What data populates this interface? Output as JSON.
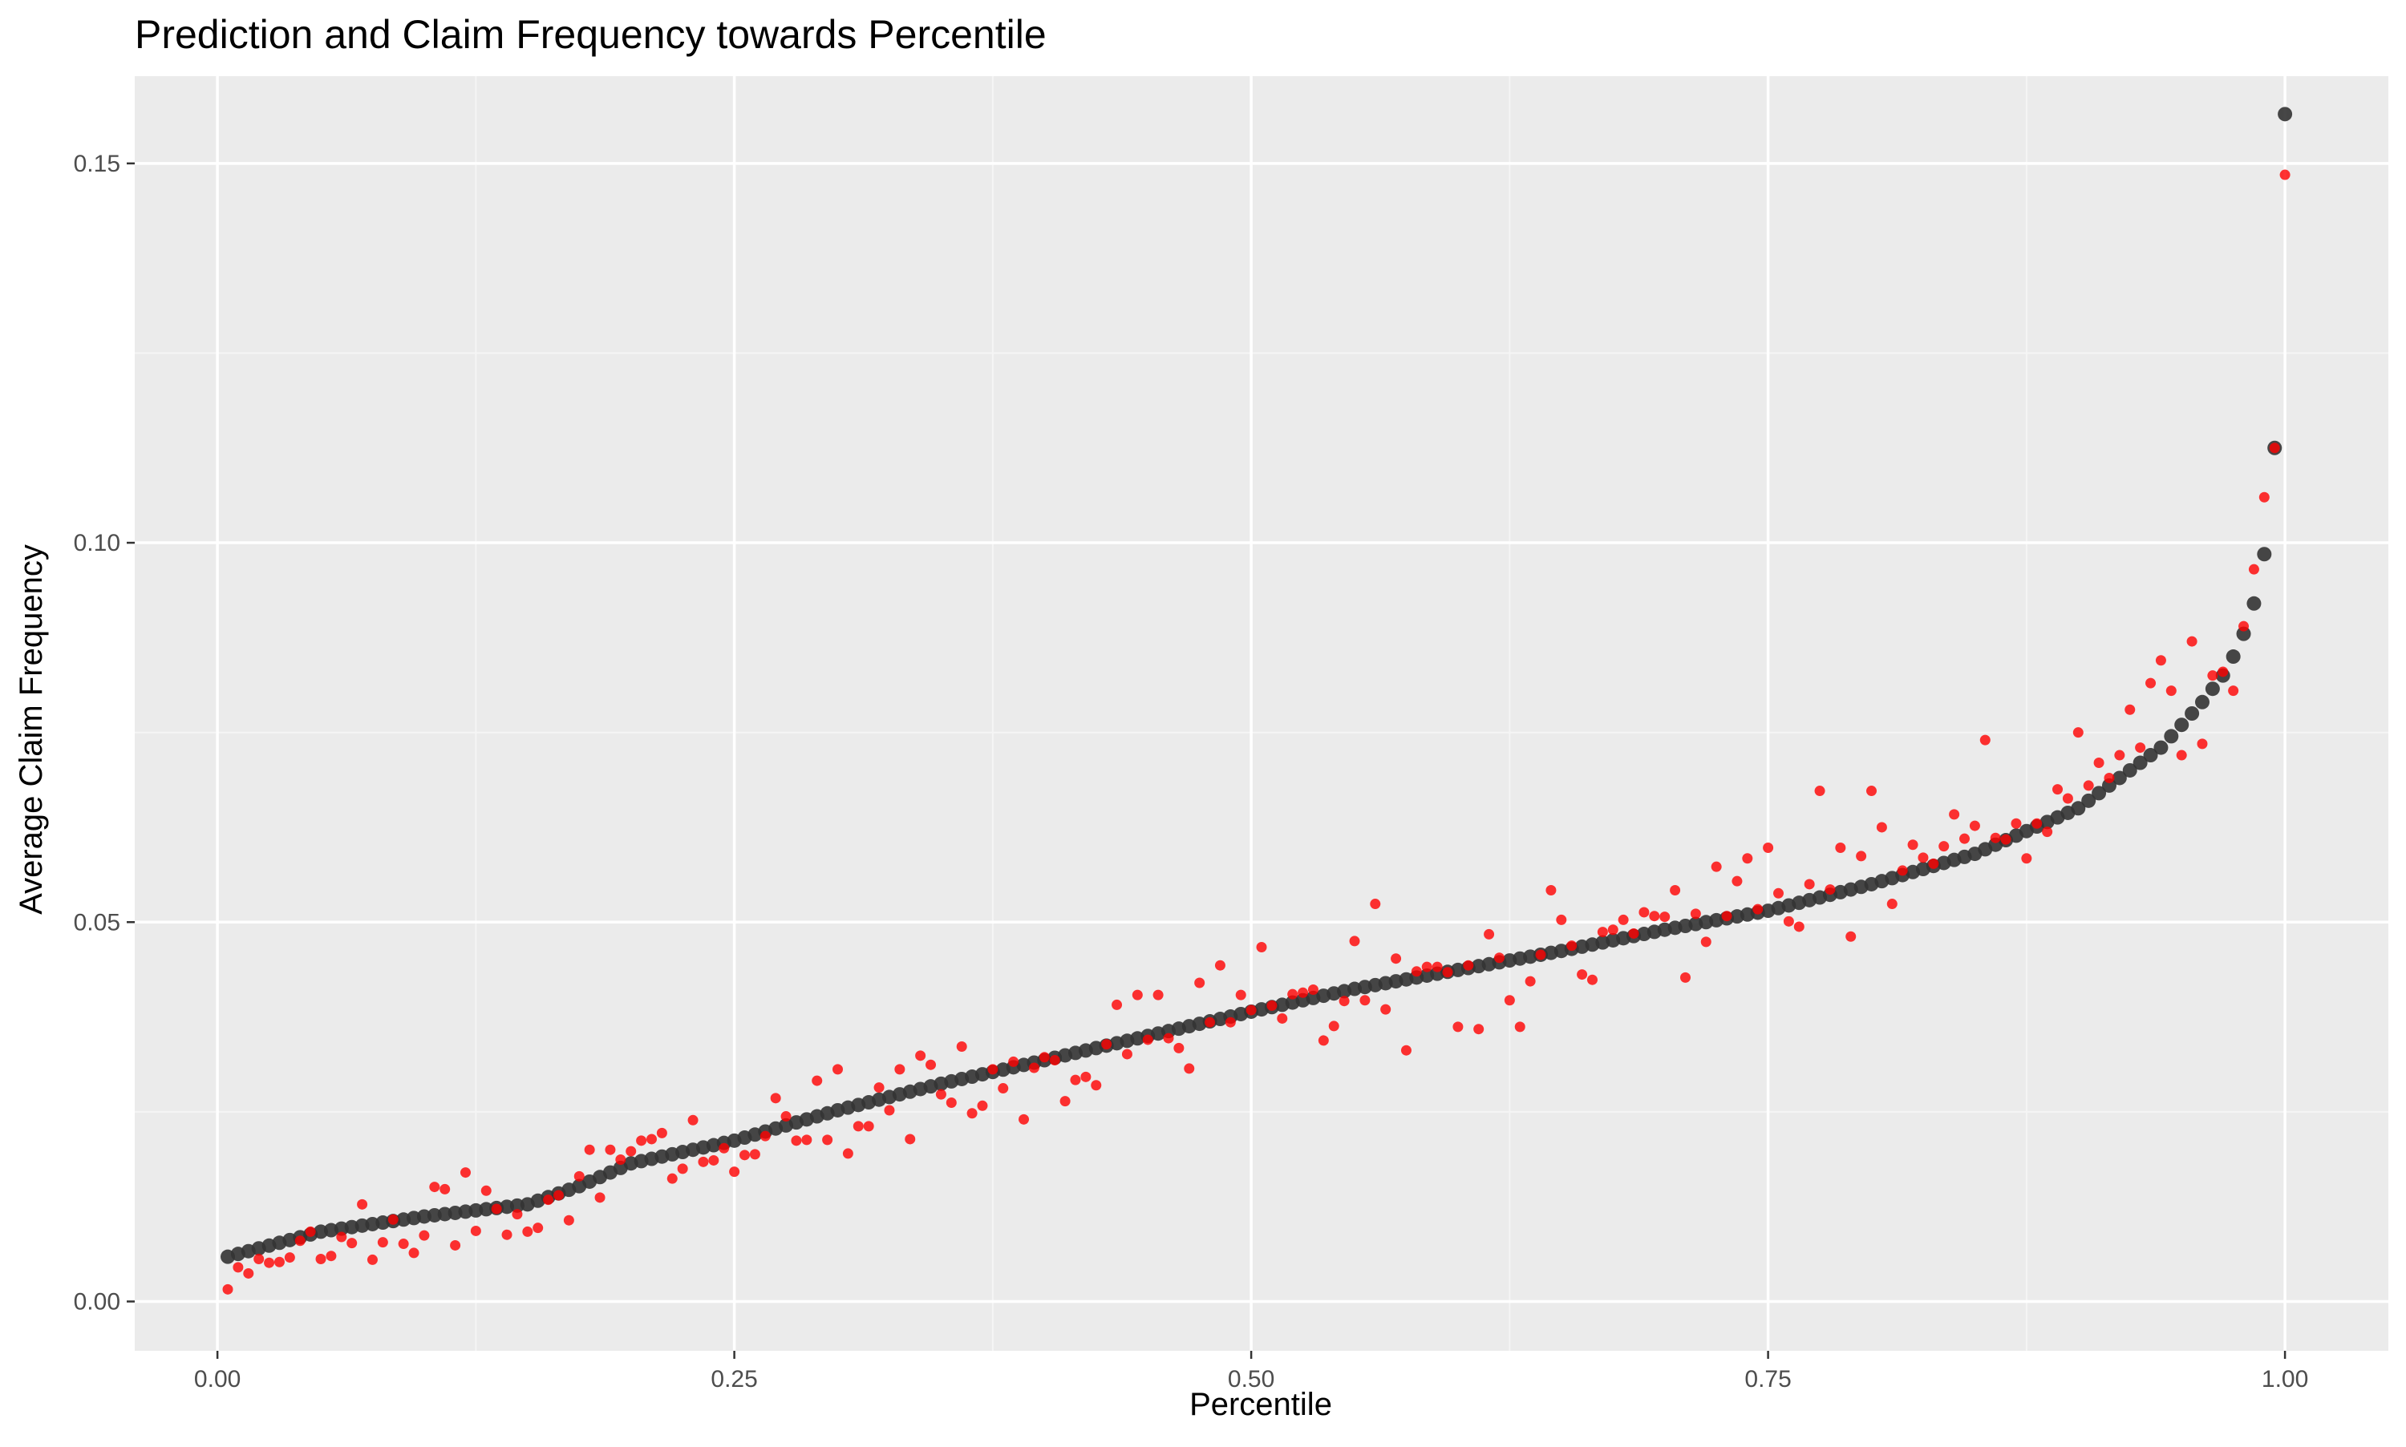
{
  "chart_data": {
    "type": "scatter",
    "title": "Prediction and Claim Frequency towards Percentile",
    "xlabel": "Percentile",
    "ylabel": "Average Claim Frequency",
    "xlim": [
      -0.04,
      1.05
    ],
    "ylim": [
      -0.0065,
      0.1615
    ],
    "x_ticks": [
      0.0,
      0.25,
      0.5,
      0.75,
      1.0
    ],
    "x_tick_labels": [
      "0.00",
      "0.25",
      "0.50",
      "0.75",
      "1.00"
    ],
    "y_ticks": [
      0.0,
      0.05,
      0.1,
      0.15
    ],
    "y_tick_labels": [
      "0.00",
      "0.05",
      "0.10",
      "0.15"
    ],
    "grid": true,
    "legend": "none",
    "colors": {
      "panel_background": "#ebebeb",
      "grid_major": "#ffffff",
      "grid_minor": "#f5f5f5",
      "prediction_points": "#333333",
      "observed_points": "#ff0000",
      "tick_label": "#4d4d4d",
      "text": "#000000"
    },
    "series": [
      {
        "role": "prediction",
        "color": "#333333",
        "points": [
          [
            0.005,
            0.0059
          ],
          [
            0.05,
            0.0092
          ],
          [
            0.1,
            0.0112
          ],
          [
            0.15,
            0.0128
          ],
          [
            0.175,
            0.0152
          ],
          [
            0.2,
            0.0182
          ],
          [
            0.25,
            0.0212
          ],
          [
            0.3,
            0.0252
          ],
          [
            0.35,
            0.0287
          ],
          [
            0.4,
            0.0318
          ],
          [
            0.45,
            0.035
          ],
          [
            0.5,
            0.0382
          ],
          [
            0.55,
            0.0412
          ],
          [
            0.6,
            0.0437
          ],
          [
            0.65,
            0.0462
          ],
          [
            0.7,
            0.049
          ],
          [
            0.75,
            0.0515
          ],
          [
            0.8,
            0.055
          ],
          [
            0.85,
            0.059
          ],
          [
            0.875,
            0.062
          ],
          [
            0.9,
            0.065
          ],
          [
            0.92,
            0.069
          ],
          [
            0.94,
            0.073
          ],
          [
            0.95,
            0.076
          ],
          [
            0.96,
            0.079
          ],
          [
            0.97,
            0.0825
          ],
          [
            0.975,
            0.085
          ],
          [
            0.98,
            0.088
          ],
          [
            0.985,
            0.092
          ],
          [
            0.99,
            0.0985
          ],
          [
            0.995,
            0.1125
          ],
          [
            1.0,
            0.1565
          ]
        ]
      },
      {
        "role": "observed",
        "color": "#ff0000",
        "points": [
          [
            0.005,
            0.0016
          ],
          [
            0.01,
            0.0045
          ],
          [
            0.015,
            0.0037
          ],
          [
            0.02,
            0.0056
          ],
          [
            0.025,
            0.0051
          ],
          [
            0.03,
            0.0052
          ],
          [
            0.035,
            0.0058
          ],
          [
            0.04,
            0.008
          ],
          [
            0.045,
            0.0092
          ],
          [
            0.05,
            0.0056
          ],
          [
            0.055,
            0.006
          ],
          [
            0.06,
            0.0085
          ],
          [
            0.065,
            0.0077
          ],
          [
            0.07,
            0.0128
          ],
          [
            0.075,
            0.0055
          ],
          [
            0.08,
            0.0078
          ],
          [
            0.085,
            0.0108
          ],
          [
            0.09,
            0.0076
          ],
          [
            0.095,
            0.0064
          ],
          [
            0.1,
            0.0087
          ],
          [
            0.105,
            0.0151
          ],
          [
            0.11,
            0.0148
          ],
          [
            0.115,
            0.0074
          ],
          [
            0.12,
            0.017
          ],
          [
            0.125,
            0.0093
          ],
          [
            0.13,
            0.0146
          ],
          [
            0.135,
            0.0122
          ],
          [
            0.14,
            0.0088
          ],
          [
            0.145,
            0.0115
          ],
          [
            0.15,
            0.0092
          ],
          [
            0.155,
            0.0097
          ],
          [
            0.16,
            0.0134
          ],
          [
            0.165,
            0.014
          ],
          [
            0.17,
            0.0107
          ],
          [
            0.175,
            0.0165
          ],
          [
            0.18,
            0.02
          ],
          [
            0.185,
            0.0137
          ],
          [
            0.19,
            0.02
          ],
          [
            0.195,
            0.0187
          ],
          [
            0.2,
            0.0198
          ],
          [
            0.205,
            0.0212
          ],
          [
            0.21,
            0.0214
          ],
          [
            0.215,
            0.0222
          ],
          [
            0.22,
            0.0162
          ],
          [
            0.225,
            0.0175
          ],
          [
            0.23,
            0.0239
          ],
          [
            0.235,
            0.0184
          ],
          [
            0.24,
            0.0186
          ],
          [
            0.245,
            0.0202
          ],
          [
            0.25,
            0.0171
          ],
          [
            0.255,
            0.0193
          ],
          [
            0.26,
            0.0194
          ],
          [
            0.265,
            0.0218
          ],
          [
            0.27,
            0.0268
          ],
          [
            0.275,
            0.0244
          ],
          [
            0.28,
            0.0212
          ],
          [
            0.285,
            0.0213
          ],
          [
            0.29,
            0.0291
          ],
          [
            0.295,
            0.0213
          ],
          [
            0.3,
            0.0306
          ],
          [
            0.305,
            0.0195
          ],
          [
            0.31,
            0.0231
          ],
          [
            0.315,
            0.0231
          ],
          [
            0.32,
            0.0282
          ],
          [
            0.325,
            0.0252
          ],
          [
            0.33,
            0.0306
          ],
          [
            0.335,
            0.0214
          ],
          [
            0.34,
            0.0324
          ],
          [
            0.345,
            0.0312
          ],
          [
            0.35,
            0.0273
          ],
          [
            0.355,
            0.0262
          ],
          [
            0.36,
            0.0336
          ],
          [
            0.365,
            0.0248
          ],
          [
            0.37,
            0.0258
          ],
          [
            0.375,
            0.0306
          ],
          [
            0.38,
            0.0281
          ],
          [
            0.385,
            0.0316
          ],
          [
            0.39,
            0.024
          ],
          [
            0.395,
            0.0308
          ],
          [
            0.4,
            0.0322
          ],
          [
            0.405,
            0.0318
          ],
          [
            0.41,
            0.0264
          ],
          [
            0.415,
            0.0292
          ],
          [
            0.42,
            0.0296
          ],
          [
            0.425,
            0.0285
          ],
          [
            0.43,
            0.0339
          ],
          [
            0.435,
            0.0391
          ],
          [
            0.44,
            0.0326
          ],
          [
            0.445,
            0.0404
          ],
          [
            0.45,
            0.0345
          ],
          [
            0.455,
            0.0404
          ],
          [
            0.46,
            0.0347
          ],
          [
            0.465,
            0.0334
          ],
          [
            0.47,
            0.0307
          ],
          [
            0.475,
            0.042
          ],
          [
            0.48,
            0.0368
          ],
          [
            0.485,
            0.0443
          ],
          [
            0.49,
            0.0368
          ],
          [
            0.495,
            0.0404
          ],
          [
            0.5,
            0.0384
          ],
          [
            0.505,
            0.0467
          ],
          [
            0.51,
            0.039
          ],
          [
            0.515,
            0.0373
          ],
          [
            0.52,
            0.0405
          ],
          [
            0.525,
            0.0407
          ],
          [
            0.53,
            0.0411
          ],
          [
            0.535,
            0.0344
          ],
          [
            0.54,
            0.0363
          ],
          [
            0.545,
            0.0396
          ],
          [
            0.55,
            0.0475
          ],
          [
            0.555,
            0.0397
          ],
          [
            0.56,
            0.0524
          ],
          [
            0.565,
            0.0385
          ],
          [
            0.57,
            0.0452
          ],
          [
            0.575,
            0.0331
          ],
          [
            0.58,
            0.0435
          ],
          [
            0.585,
            0.0441
          ],
          [
            0.59,
            0.0441
          ],
          [
            0.595,
            0.0434
          ],
          [
            0.6,
            0.0362
          ],
          [
            0.605,
            0.0443
          ],
          [
            0.61,
            0.0359
          ],
          [
            0.615,
            0.0484
          ],
          [
            0.62,
            0.0453
          ],
          [
            0.625,
            0.0397
          ],
          [
            0.63,
            0.0362
          ],
          [
            0.635,
            0.0422
          ],
          [
            0.64,
            0.0457
          ],
          [
            0.645,
            0.0542
          ],
          [
            0.65,
            0.0503
          ],
          [
            0.655,
            0.0469
          ],
          [
            0.66,
            0.0431
          ],
          [
            0.665,
            0.0424
          ],
          [
            0.67,
            0.0487
          ],
          [
            0.675,
            0.049
          ],
          [
            0.68,
            0.0503
          ],
          [
            0.685,
            0.0485
          ],
          [
            0.69,
            0.0513
          ],
          [
            0.695,
            0.0508
          ],
          [
            0.7,
            0.0507
          ],
          [
            0.705,
            0.0542
          ],
          [
            0.71,
            0.0427
          ],
          [
            0.715,
            0.0511
          ],
          [
            0.72,
            0.0474
          ],
          [
            0.725,
            0.0573
          ],
          [
            0.73,
            0.0508
          ],
          [
            0.735,
            0.0554
          ],
          [
            0.74,
            0.0584
          ],
          [
            0.745,
            0.0517
          ],
          [
            0.75,
            0.0598
          ],
          [
            0.755,
            0.0538
          ],
          [
            0.76,
            0.0501
          ],
          [
            0.765,
            0.0494
          ],
          [
            0.77,
            0.055
          ],
          [
            0.775,
            0.0673
          ],
          [
            0.78,
            0.0543
          ],
          [
            0.785,
            0.0598
          ],
          [
            0.79,
            0.0481
          ],
          [
            0.795,
            0.0587
          ],
          [
            0.8,
            0.0673
          ],
          [
            0.805,
            0.0625
          ],
          [
            0.81,
            0.0524
          ],
          [
            0.815,
            0.0568
          ],
          [
            0.82,
            0.0602
          ],
          [
            0.825,
            0.0585
          ],
          [
            0.83,
            0.0577
          ],
          [
            0.835,
            0.06
          ],
          [
            0.84,
            0.0642
          ],
          [
            0.845,
            0.061
          ],
          [
            0.85,
            0.0627
          ],
          [
            0.855,
            0.074
          ],
          [
            0.86,
            0.0611
          ],
          [
            0.865,
            0.0609
          ],
          [
            0.87,
            0.063
          ],
          [
            0.875,
            0.0584
          ],
          [
            0.88,
            0.063
          ],
          [
            0.885,
            0.0619
          ],
          [
            0.89,
            0.0675
          ],
          [
            0.895,
            0.0663
          ],
          [
            0.9,
            0.075
          ],
          [
            0.905,
            0.068
          ],
          [
            0.91,
            0.071
          ],
          [
            0.915,
            0.069
          ],
          [
            0.92,
            0.072
          ],
          [
            0.925,
            0.078
          ],
          [
            0.93,
            0.073
          ],
          [
            0.935,
            0.0815
          ],
          [
            0.94,
            0.0845
          ],
          [
            0.945,
            0.0805
          ],
          [
            0.95,
            0.072
          ],
          [
            0.955,
            0.087
          ],
          [
            0.96,
            0.0735
          ],
          [
            0.965,
            0.0825
          ],
          [
            0.97,
            0.083
          ],
          [
            0.975,
            0.0805
          ],
          [
            0.98,
            0.089
          ],
          [
            0.985,
            0.0965
          ],
          [
            0.99,
            0.106
          ],
          [
            0.995,
            0.1125
          ],
          [
            1.0,
            0.1485
          ]
        ]
      }
    ]
  }
}
